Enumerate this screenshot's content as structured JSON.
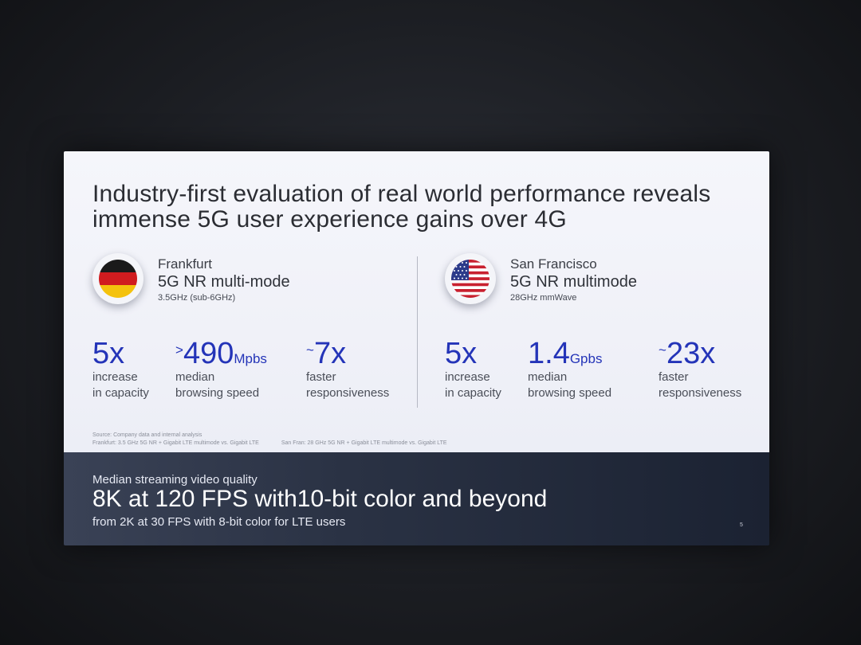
{
  "slide": {
    "title_line1": "Industry-first evaluation of real world performance reveals",
    "title_line2": "immense 5G user experience gains over 4G",
    "regions": [
      {
        "city": "Frankfurt",
        "mode": "5G NR multi-mode",
        "band": "3.5GHz (sub-6GHz)",
        "flag_icon": "germany-flag-icon",
        "stats": [
          {
            "prefix": "",
            "value": "5x",
            "unit": "",
            "desc1": "increase",
            "desc2": "in capacity"
          },
          {
            "prefix": ">",
            "value": "490",
            "unit": "Mpbs",
            "desc1": "median",
            "desc2": "browsing speed"
          },
          {
            "prefix": "~",
            "value": "7x",
            "unit": "",
            "desc1": "faster",
            "desc2": "responsiveness"
          }
        ]
      },
      {
        "city": "San Francisco",
        "mode": "5G NR multimode",
        "band": "28GHz mmWave",
        "flag_icon": "usa-flag-icon",
        "stats": [
          {
            "prefix": "",
            "value": "5x",
            "unit": "",
            "desc1": "increase",
            "desc2": "in capacity"
          },
          {
            "prefix": "",
            "value": "1.4",
            "unit": "Gpbs",
            "desc1": "median",
            "desc2": "browsing speed"
          },
          {
            "prefix": "~",
            "value": "23x",
            "unit": "",
            "desc1": "faster",
            "desc2": "responsiveness"
          }
        ]
      }
    ],
    "sources": {
      "line1": "Source: Company data and internal analysis",
      "frankfurt": "Frankfurt: 3.5 GHz 5G NR + Gigabit LTE multimode vs. Gigabit LTE",
      "sanfran": "San Fran: 28 GHz 5G NR + Gigabit LTE multimode vs. Gigabit LTE"
    },
    "streaming": {
      "label": "Median streaming video quality",
      "headline": "8K at 120 FPS with10-bit color and beyond",
      "sub": "from 2K at 30 FPS with 8-bit color for LTE users"
    },
    "page_number": "5",
    "colors": {
      "accent": "#2434b8",
      "footer_bg": "#2a3244"
    }
  }
}
